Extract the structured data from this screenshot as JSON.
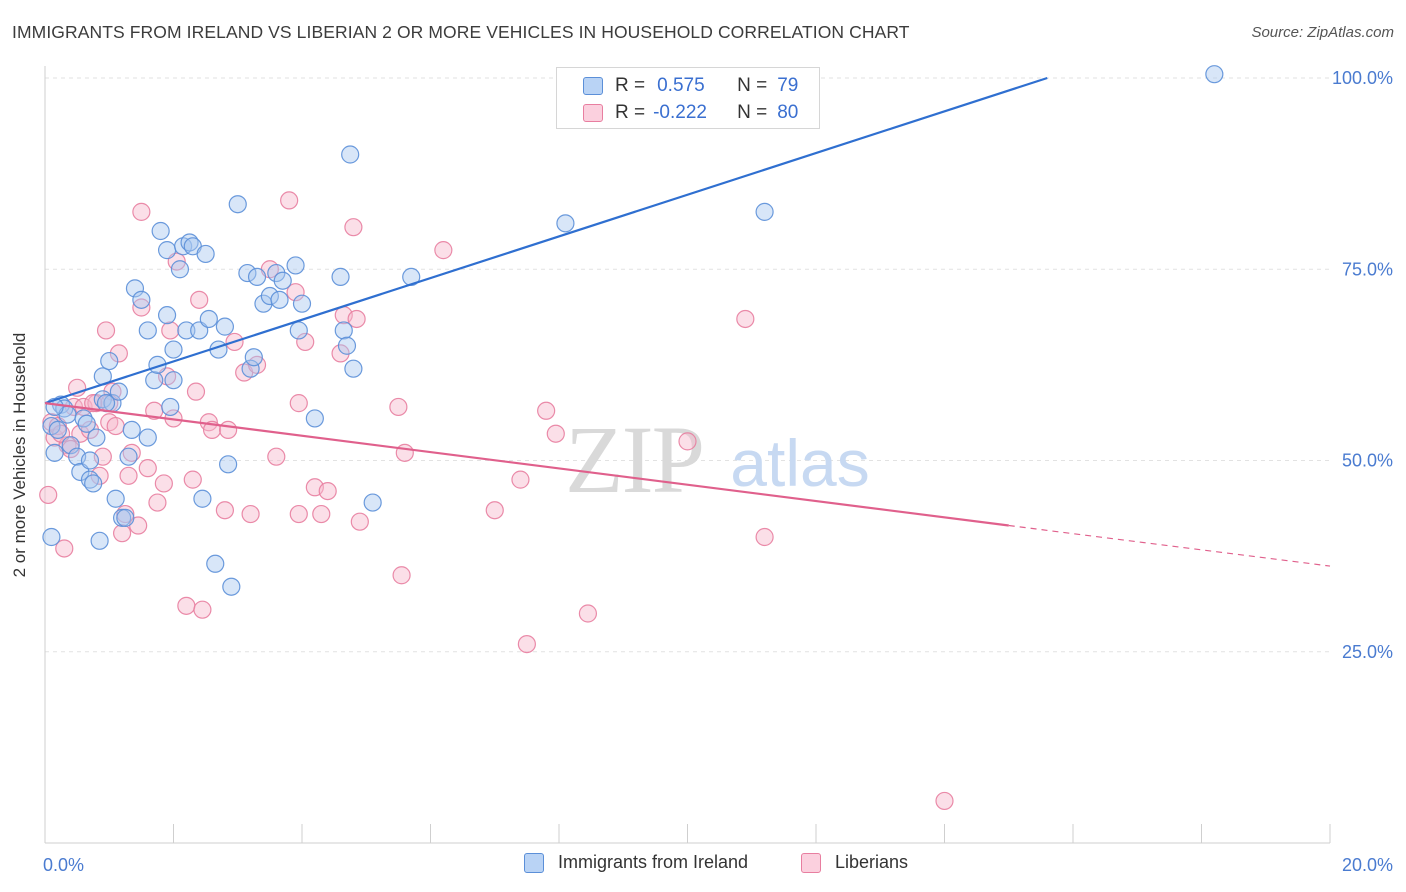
{
  "title": "IMMIGRANTS FROM IRELAND VS LIBERIAN 2 OR MORE VEHICLES IN HOUSEHOLD CORRELATION CHART",
  "source": "Source: ZipAtlas.com",
  "watermark": {
    "zip": "ZIP",
    "atlas": "atlas"
  },
  "colors": {
    "blue_fill": "#a8c8f0",
    "blue_stroke": "#5b8fd8",
    "blue_line": "#2f6fd0",
    "pink_fill": "#f7b8cc",
    "pink_stroke": "#e87ea0",
    "pink_line": "#e0608c",
    "axis_label": "#4a7bd0",
    "grid": "#e2e2e2"
  },
  "legend": {
    "rows": [
      {
        "r_label": "R =",
        "r_value": "0.575",
        "n_label": "N =",
        "n_value": "79"
      },
      {
        "r_label": "R =",
        "r_value": "-0.222",
        "n_label": "N =",
        "n_value": "80"
      }
    ]
  },
  "chart_data": {
    "type": "scatter",
    "title": "IMMIGRANTS FROM IRELAND VS LIBERIAN 2 OR MORE VEHICLES IN HOUSEHOLD CORRELATION CHART",
    "xlabel": "",
    "ylabel": "2 or more Vehicles in Household",
    "xlim": [
      0,
      20
    ],
    "ylim": [
      0,
      100
    ],
    "x_tick_labels": [
      "0.0%",
      "20.0%"
    ],
    "y_ticks": [
      25,
      50,
      75,
      100
    ],
    "y_tick_labels": [
      "25.0%",
      "50.0%",
      "75.0%",
      "100.0%"
    ],
    "grid": true,
    "legend_placement": "top-center",
    "series": [
      {
        "name": "Immigrants from Ireland",
        "R": 0.575,
        "N": 79,
        "trend": {
          "x0": 0.0,
          "y0": 57.5,
          "x1": 15.6,
          "y1": 100.0
        },
        "points": [
          [
            0.1,
            54.5
          ],
          [
            0.1,
            40.0
          ],
          [
            0.15,
            51.0
          ],
          [
            0.2,
            54.0
          ],
          [
            0.25,
            57.3
          ],
          [
            0.3,
            56.8
          ],
          [
            0.35,
            56.0
          ],
          [
            0.4,
            52.0
          ],
          [
            0.5,
            50.5
          ],
          [
            0.55,
            48.5
          ],
          [
            0.6,
            55.5
          ],
          [
            0.65,
            54.8
          ],
          [
            0.7,
            50.0
          ],
          [
            0.7,
            47.5
          ],
          [
            0.75,
            47.0
          ],
          [
            0.8,
            53.0
          ],
          [
            0.85,
            39.5
          ],
          [
            0.9,
            58.0
          ],
          [
            0.9,
            61.0
          ],
          [
            1.0,
            63.0
          ],
          [
            1.05,
            57.5
          ],
          [
            1.1,
            45.0
          ],
          [
            1.15,
            59.0
          ],
          [
            1.2,
            42.5
          ],
          [
            1.3,
            50.5
          ],
          [
            1.35,
            54.0
          ],
          [
            1.4,
            72.5
          ],
          [
            1.5,
            71.0
          ],
          [
            1.6,
            53.0
          ],
          [
            1.6,
            67.0
          ],
          [
            1.7,
            60.5
          ],
          [
            1.75,
            62.5
          ],
          [
            1.8,
            80.0
          ],
          [
            1.9,
            77.5
          ],
          [
            1.9,
            69.0
          ],
          [
            1.95,
            57.0
          ],
          [
            2.0,
            64.5
          ],
          [
            2.1,
            75.0
          ],
          [
            2.15,
            78.0
          ],
          [
            2.2,
            67.0
          ],
          [
            2.25,
            78.5
          ],
          [
            2.3,
            78.0
          ],
          [
            2.4,
            67.0
          ],
          [
            2.45,
            45.0
          ],
          [
            2.5,
            77.0
          ],
          [
            2.55,
            68.5
          ],
          [
            2.65,
            36.5
          ],
          [
            2.7,
            64.5
          ],
          [
            2.8,
            67.5
          ],
          [
            2.85,
            49.5
          ],
          [
            2.9,
            33.5
          ],
          [
            3.0,
            83.5
          ],
          [
            3.15,
            74.5
          ],
          [
            3.2,
            62.0
          ],
          [
            3.25,
            63.5
          ],
          [
            3.3,
            74.0
          ],
          [
            3.4,
            70.5
          ],
          [
            3.5,
            71.5
          ],
          [
            3.6,
            74.5
          ],
          [
            3.65,
            71.0
          ],
          [
            3.7,
            73.5
          ],
          [
            3.9,
            75.5
          ],
          [
            3.95,
            67.0
          ],
          [
            4.0,
            70.5
          ],
          [
            4.2,
            55.5
          ],
          [
            4.6,
            74.0
          ],
          [
            4.65,
            67.0
          ],
          [
            4.7,
            65.0
          ],
          [
            4.8,
            62.0
          ],
          [
            4.75,
            90.0
          ],
          [
            5.1,
            44.5
          ],
          [
            5.7,
            74.0
          ],
          [
            8.1,
            81.0
          ],
          [
            11.2,
            82.5
          ],
          [
            18.2,
            100.5
          ],
          [
            0.15,
            57.0
          ],
          [
            1.25,
            42.5
          ],
          [
            2.0,
            60.5
          ],
          [
            0.95,
            57.5
          ]
        ]
      },
      {
        "name": "Liberians",
        "R": -0.222,
        "N": 80,
        "trend": {
          "x0": 0.0,
          "y0": 57.5,
          "x1": 15.0,
          "y1": 41.5
        },
        "trend_extension": {
          "x0": 15.0,
          "y0": 41.5,
          "x1": 20.0,
          "y1": 36.2
        },
        "points": [
          [
            0.05,
            45.5
          ],
          [
            0.1,
            55.0
          ],
          [
            0.15,
            53.0
          ],
          [
            0.2,
            54.5
          ],
          [
            0.3,
            38.5
          ],
          [
            0.35,
            52.0
          ],
          [
            0.4,
            51.5
          ],
          [
            0.45,
            57.0
          ],
          [
            0.5,
            59.5
          ],
          [
            0.55,
            53.5
          ],
          [
            0.6,
            57.0
          ],
          [
            0.7,
            54.0
          ],
          [
            0.8,
            57.5
          ],
          [
            0.85,
            48.0
          ],
          [
            0.9,
            50.5
          ],
          [
            0.95,
            67.0
          ],
          [
            1.0,
            55.0
          ],
          [
            1.05,
            59.0
          ],
          [
            1.1,
            54.5
          ],
          [
            1.15,
            64.0
          ],
          [
            1.2,
            40.5
          ],
          [
            1.25,
            43.0
          ],
          [
            1.3,
            48.0
          ],
          [
            1.35,
            51.0
          ],
          [
            1.45,
            41.5
          ],
          [
            1.5,
            70.0
          ],
          [
            1.5,
            82.5
          ],
          [
            1.6,
            49.0
          ],
          [
            1.7,
            56.5
          ],
          [
            1.75,
            44.5
          ],
          [
            1.85,
            47.0
          ],
          [
            1.9,
            61.0
          ],
          [
            1.95,
            67.0
          ],
          [
            2.0,
            55.5
          ],
          [
            2.05,
            76.0
          ],
          [
            2.2,
            31.0
          ],
          [
            2.3,
            47.5
          ],
          [
            2.35,
            59.0
          ],
          [
            2.4,
            71.0
          ],
          [
            2.45,
            30.5
          ],
          [
            2.55,
            55.0
          ],
          [
            2.6,
            54.0
          ],
          [
            2.8,
            43.5
          ],
          [
            2.85,
            54.0
          ],
          [
            2.95,
            65.5
          ],
          [
            3.1,
            61.5
          ],
          [
            3.2,
            43.0
          ],
          [
            3.3,
            62.5
          ],
          [
            3.5,
            75.0
          ],
          [
            3.6,
            50.5
          ],
          [
            3.8,
            84.0
          ],
          [
            3.9,
            72.0
          ],
          [
            3.95,
            57.5
          ],
          [
            3.95,
            43.0
          ],
          [
            4.05,
            65.5
          ],
          [
            4.2,
            46.5
          ],
          [
            4.3,
            43.0
          ],
          [
            4.4,
            46.0
          ],
          [
            4.6,
            64.0
          ],
          [
            4.65,
            69.0
          ],
          [
            4.8,
            80.5
          ],
          [
            4.85,
            68.5
          ],
          [
            4.9,
            42.0
          ],
          [
            5.5,
            57.0
          ],
          [
            5.55,
            35.0
          ],
          [
            5.6,
            51.0
          ],
          [
            6.2,
            77.5
          ],
          [
            7.0,
            43.5
          ],
          [
            7.4,
            47.5
          ],
          [
            7.5,
            26.0
          ],
          [
            7.8,
            56.5
          ],
          [
            7.95,
            53.5
          ],
          [
            8.45,
            30.0
          ],
          [
            10.0,
            52.5
          ],
          [
            10.9,
            68.5
          ],
          [
            11.2,
            40.0
          ],
          [
            14.0,
            5.5
          ],
          [
            0.25,
            53.5
          ],
          [
            1.0,
            57.5
          ],
          [
            0.75,
            57.5
          ]
        ]
      }
    ]
  }
}
